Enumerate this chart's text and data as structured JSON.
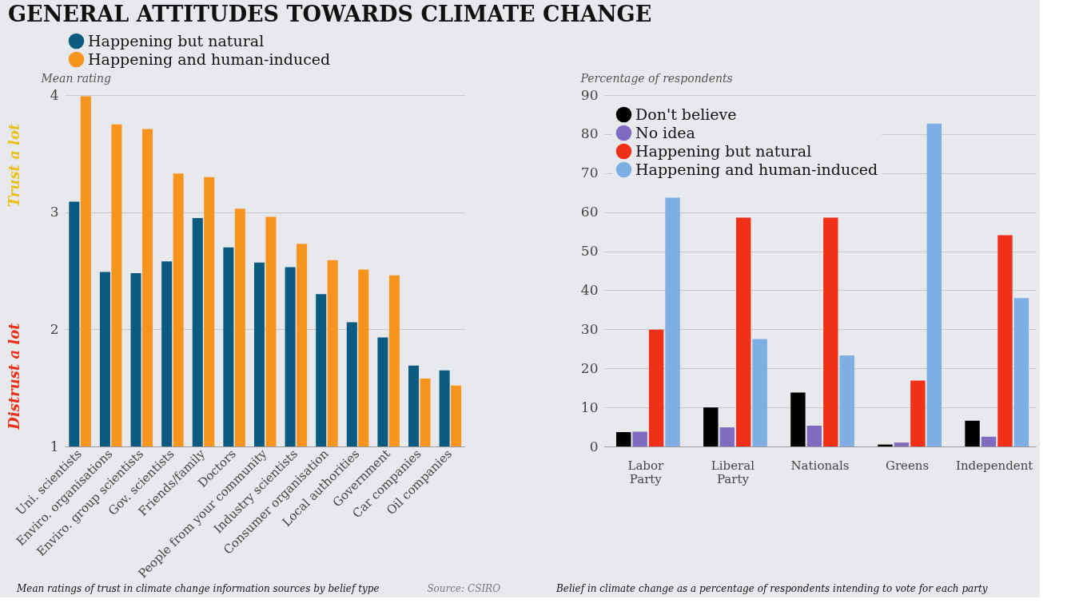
{
  "chart_data": [
    {
      "type": "bar",
      "title": "GENERAL ATTITUDES TOWARDS CLIMATE CHANGE",
      "ylabel": "Mean rating",
      "categories": [
        "Uni. scientists",
        "Enviro. organisations",
        "Enviro. group scientists",
        "Gov. scientists",
        "Friends/family",
        "Doctors",
        "People from your community",
        "Industry scientists",
        "Consumer organisation",
        "Local authorities",
        "Government",
        "Car companies",
        "Oil companies"
      ],
      "series": [
        {
          "name": "Happening but natural",
          "color": "#0b5a80",
          "values": [
            3.09,
            2.49,
            2.48,
            2.58,
            2.95,
            2.7,
            2.57,
            2.53,
            2.3,
            2.06,
            1.93,
            1.69,
            1.65
          ]
        },
        {
          "name": "Happening and human-induced",
          "color": "#f7941d",
          "values": [
            3.99,
            3.75,
            3.71,
            3.33,
            3.3,
            3.03,
            2.96,
            2.73,
            2.59,
            2.51,
            2.46,
            1.58,
            1.52
          ]
        }
      ],
      "ylim": [
        1,
        4
      ],
      "yticks": [
        1,
        2,
        3,
        4
      ],
      "grid": "y",
      "legend": "top",
      "annotations": [
        "Trust a lot",
        "Distrust a lot",
        "Mean ratings of trust in climate change information sources by belief type",
        "Source: CSIRO"
      ]
    },
    {
      "type": "bar",
      "ylabel": "Percentage of respondents",
      "categories": [
        "Labor Party",
        "Liberal Party",
        "Nationals",
        "Greens",
        "Independent"
      ],
      "series": [
        {
          "name": "Don't believe",
          "color": "#000000",
          "values": [
            3.7,
            10,
            13.8,
            0.5,
            6.6
          ]
        },
        {
          "name": "No idea",
          "color": "#7f6cc0",
          "values": [
            3.8,
            4.9,
            5.3,
            1,
            2.5
          ]
        },
        {
          "name": "Happening but natural",
          "color": "#f03018",
          "values": [
            29.9,
            58.6,
            58.6,
            16.9,
            54.1
          ]
        },
        {
          "name": "Happening and human-induced",
          "color": "#7eaee3",
          "values": [
            63.7,
            27.5,
            23.3,
            82.7,
            38
          ]
        }
      ],
      "ylim": [
        0,
        90
      ],
      "yticks": [
        0,
        10,
        20,
        30,
        40,
        50,
        60,
        70,
        80,
        90
      ],
      "grid": "y",
      "legend": "top left",
      "annotations": [
        "Belief in climate change as a percentage of respondents intending to vote for each party"
      ]
    }
  ]
}
